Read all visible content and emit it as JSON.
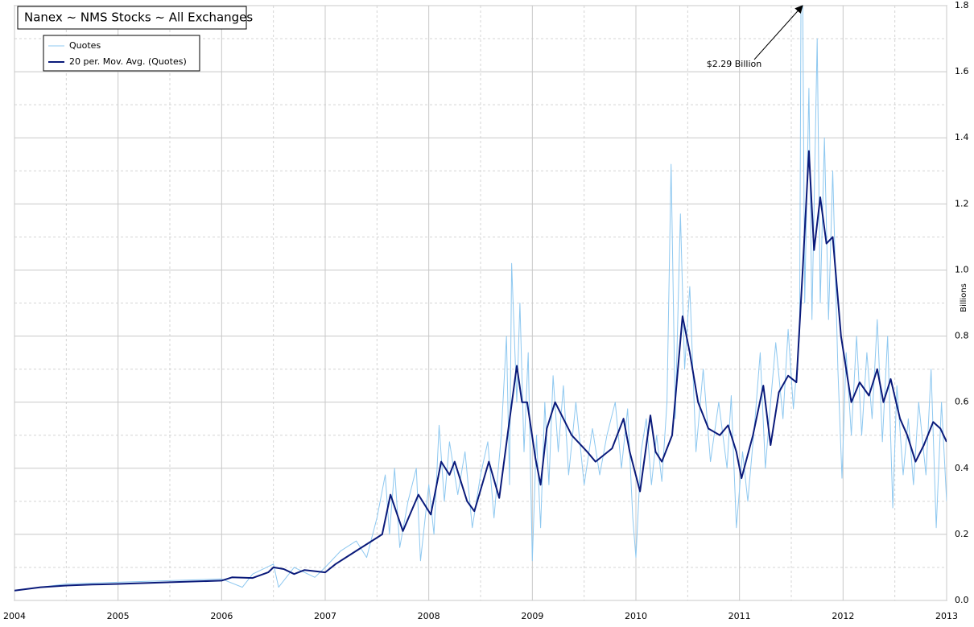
{
  "chart_data": {
    "type": "line",
    "title": "Nanex ~ NMS Stocks ~ All Exchanges",
    "y_label": "Billions",
    "annotation": {
      "text": "$2.29 Billion",
      "x": 2011.6,
      "y": 2.29
    },
    "xlim": [
      2004,
      2013
    ],
    "xticks": [
      2004,
      2005,
      2006,
      2007,
      2008,
      2009,
      2010,
      2011,
      2012,
      2013
    ],
    "xminorticks": [
      2004.5,
      2005.5,
      2006.5,
      2007.5,
      2008.5,
      2009.5,
      2010.5,
      2011.5,
      2012.5
    ],
    "ylim": [
      0,
      1.8
    ],
    "yticks": [
      {
        "value": 0,
        "label": "0.0"
      },
      0.2,
      0.4,
      0.6,
      0.8,
      {
        "value": 1,
        "label": "1.0"
      },
      1.2,
      1.4,
      1.6,
      1.8
    ],
    "yminorticks": [
      0.1,
      0.3,
      0.5,
      0.7,
      0.9,
      1.1,
      1.3,
      1.5,
      1.7
    ],
    "grid": true,
    "legend": "top-left",
    "series": [
      {
        "name": "Quotes",
        "color": "#8ec8f0",
        "width": 1,
        "x": [
          2004.0,
          2004.5,
          2005.0,
          2005.5,
          2006.0,
          2006.2,
          2006.3,
          2006.5,
          2006.55,
          2006.7,
          2006.9,
          2007.0,
          2007.15,
          2007.3,
          2007.4,
          2007.5,
          2007.58,
          2007.62,
          2007.67,
          2007.72,
          2007.8,
          2007.88,
          2007.92,
          2008.0,
          2008.05,
          2008.1,
          2008.15,
          2008.2,
          2008.28,
          2008.35,
          2008.42,
          2008.5,
          2008.57,
          2008.63,
          2008.7,
          2008.75,
          2008.78,
          2008.8,
          2008.85,
          2008.88,
          2008.92,
          2008.96,
          2009.0,
          2009.04,
          2009.08,
          2009.12,
          2009.16,
          2009.2,
          2009.25,
          2009.3,
          2009.35,
          2009.42,
          2009.5,
          2009.58,
          2009.65,
          2009.72,
          2009.8,
          2009.86,
          2009.92,
          2009.97,
          2010.0,
          2010.05,
          2010.1,
          2010.15,
          2010.2,
          2010.25,
          2010.3,
          2010.34,
          2010.38,
          2010.43,
          2010.47,
          2010.52,
          2010.58,
          2010.65,
          2010.72,
          2010.8,
          2010.88,
          2010.92,
          2010.97,
          2011.03,
          2011.08,
          2011.15,
          2011.2,
          2011.25,
          2011.3,
          2011.35,
          2011.42,
          2011.47,
          2011.52,
          2011.58,
          2011.6,
          2011.63,
          2011.67,
          2011.7,
          2011.75,
          2011.78,
          2011.82,
          2011.86,
          2011.9,
          2011.95,
          2011.99,
          2012.03,
          2012.08,
          2012.13,
          2012.18,
          2012.23,
          2012.28,
          2012.33,
          2012.38,
          2012.43,
          2012.48,
          2012.52,
          2012.58,
          2012.63,
          2012.68,
          2012.73,
          2012.8,
          2012.85,
          2012.9,
          2012.95,
          2013.0
        ],
        "values": [
          0.03,
          0.05,
          0.055,
          0.06,
          0.065,
          0.04,
          0.08,
          0.11,
          0.04,
          0.1,
          0.07,
          0.1,
          0.15,
          0.18,
          0.13,
          0.25,
          0.38,
          0.2,
          0.4,
          0.16,
          0.3,
          0.4,
          0.12,
          0.35,
          0.2,
          0.53,
          0.3,
          0.48,
          0.32,
          0.45,
          0.22,
          0.38,
          0.48,
          0.25,
          0.5,
          0.8,
          0.35,
          1.02,
          0.6,
          0.9,
          0.45,
          0.75,
          0.12,
          0.5,
          0.22,
          0.6,
          0.35,
          0.68,
          0.45,
          0.65,
          0.38,
          0.6,
          0.35,
          0.52,
          0.38,
          0.5,
          0.6,
          0.4,
          0.58,
          0.25,
          0.13,
          0.45,
          0.55,
          0.35,
          0.5,
          0.36,
          0.6,
          1.32,
          0.55,
          1.17,
          0.7,
          0.95,
          0.45,
          0.7,
          0.42,
          0.6,
          0.4,
          0.62,
          0.22,
          0.45,
          0.3,
          0.55,
          0.75,
          0.4,
          0.6,
          0.78,
          0.55,
          0.82,
          0.58,
          0.8,
          2.29,
          0.9,
          1.55,
          0.85,
          1.7,
          0.9,
          1.4,
          0.85,
          1.3,
          0.7,
          0.37,
          0.75,
          0.5,
          0.8,
          0.5,
          0.75,
          0.55,
          0.85,
          0.48,
          0.8,
          0.28,
          0.65,
          0.38,
          0.55,
          0.35,
          0.6,
          0.38,
          0.7,
          0.22,
          0.6,
          0.3
        ]
      },
      {
        "name": "20 per. Mov. Avg. (Quotes)",
        "color": "#0a1a7a",
        "width": 2,
        "x": [
          2004.0,
          2004.25,
          2004.5,
          2004.75,
          2005.0,
          2005.5,
          2006.0,
          2006.1,
          2006.3,
          2006.45,
          2006.5,
          2006.6,
          2006.7,
          2006.8,
          2007.0,
          2007.1,
          2007.2,
          2007.3,
          2007.45,
          2007.55,
          2007.63,
          2007.75,
          2007.9,
          2008.02,
          2008.12,
          2008.2,
          2008.25,
          2008.37,
          2008.44,
          2008.58,
          2008.68,
          2008.76,
          2008.85,
          2008.9,
          2008.95,
          2009.03,
          2009.08,
          2009.14,
          2009.22,
          2009.3,
          2009.38,
          2009.53,
          2009.61,
          2009.77,
          2009.88,
          2009.94,
          2010.04,
          2010.14,
          2010.19,
          2010.25,
          2010.35,
          2010.45,
          2010.52,
          2010.6,
          2010.7,
          2010.81,
          2010.89,
          2010.97,
          2011.02,
          2011.13,
          2011.23,
          2011.3,
          2011.38,
          2011.47,
          2011.55,
          2011.61,
          2011.67,
          2011.72,
          2011.78,
          2011.84,
          2011.9,
          2011.98,
          2012.08,
          2012.16,
          2012.25,
          2012.33,
          2012.39,
          2012.46,
          2012.55,
          2012.62,
          2012.7,
          2012.78,
          2012.87,
          2012.94,
          2013.0
        ],
        "values": [
          0.03,
          0.04,
          0.045,
          0.048,
          0.05,
          0.055,
          0.06,
          0.07,
          0.068,
          0.085,
          0.1,
          0.095,
          0.08,
          0.092,
          0.085,
          0.11,
          0.13,
          0.15,
          0.18,
          0.2,
          0.32,
          0.21,
          0.32,
          0.26,
          0.42,
          0.38,
          0.42,
          0.3,
          0.27,
          0.42,
          0.31,
          0.5,
          0.71,
          0.6,
          0.6,
          0.43,
          0.35,
          0.52,
          0.6,
          0.55,
          0.5,
          0.45,
          0.42,
          0.46,
          0.55,
          0.45,
          0.33,
          0.56,
          0.45,
          0.42,
          0.5,
          0.86,
          0.75,
          0.6,
          0.52,
          0.5,
          0.53,
          0.45,
          0.37,
          0.5,
          0.65,
          0.47,
          0.63,
          0.68,
          0.66,
          1.0,
          1.36,
          1.06,
          1.22,
          1.08,
          1.1,
          0.8,
          0.6,
          0.66,
          0.62,
          0.7,
          0.6,
          0.67,
          0.55,
          0.5,
          0.42,
          0.47,
          0.54,
          0.52,
          0.48
        ]
      }
    ]
  }
}
